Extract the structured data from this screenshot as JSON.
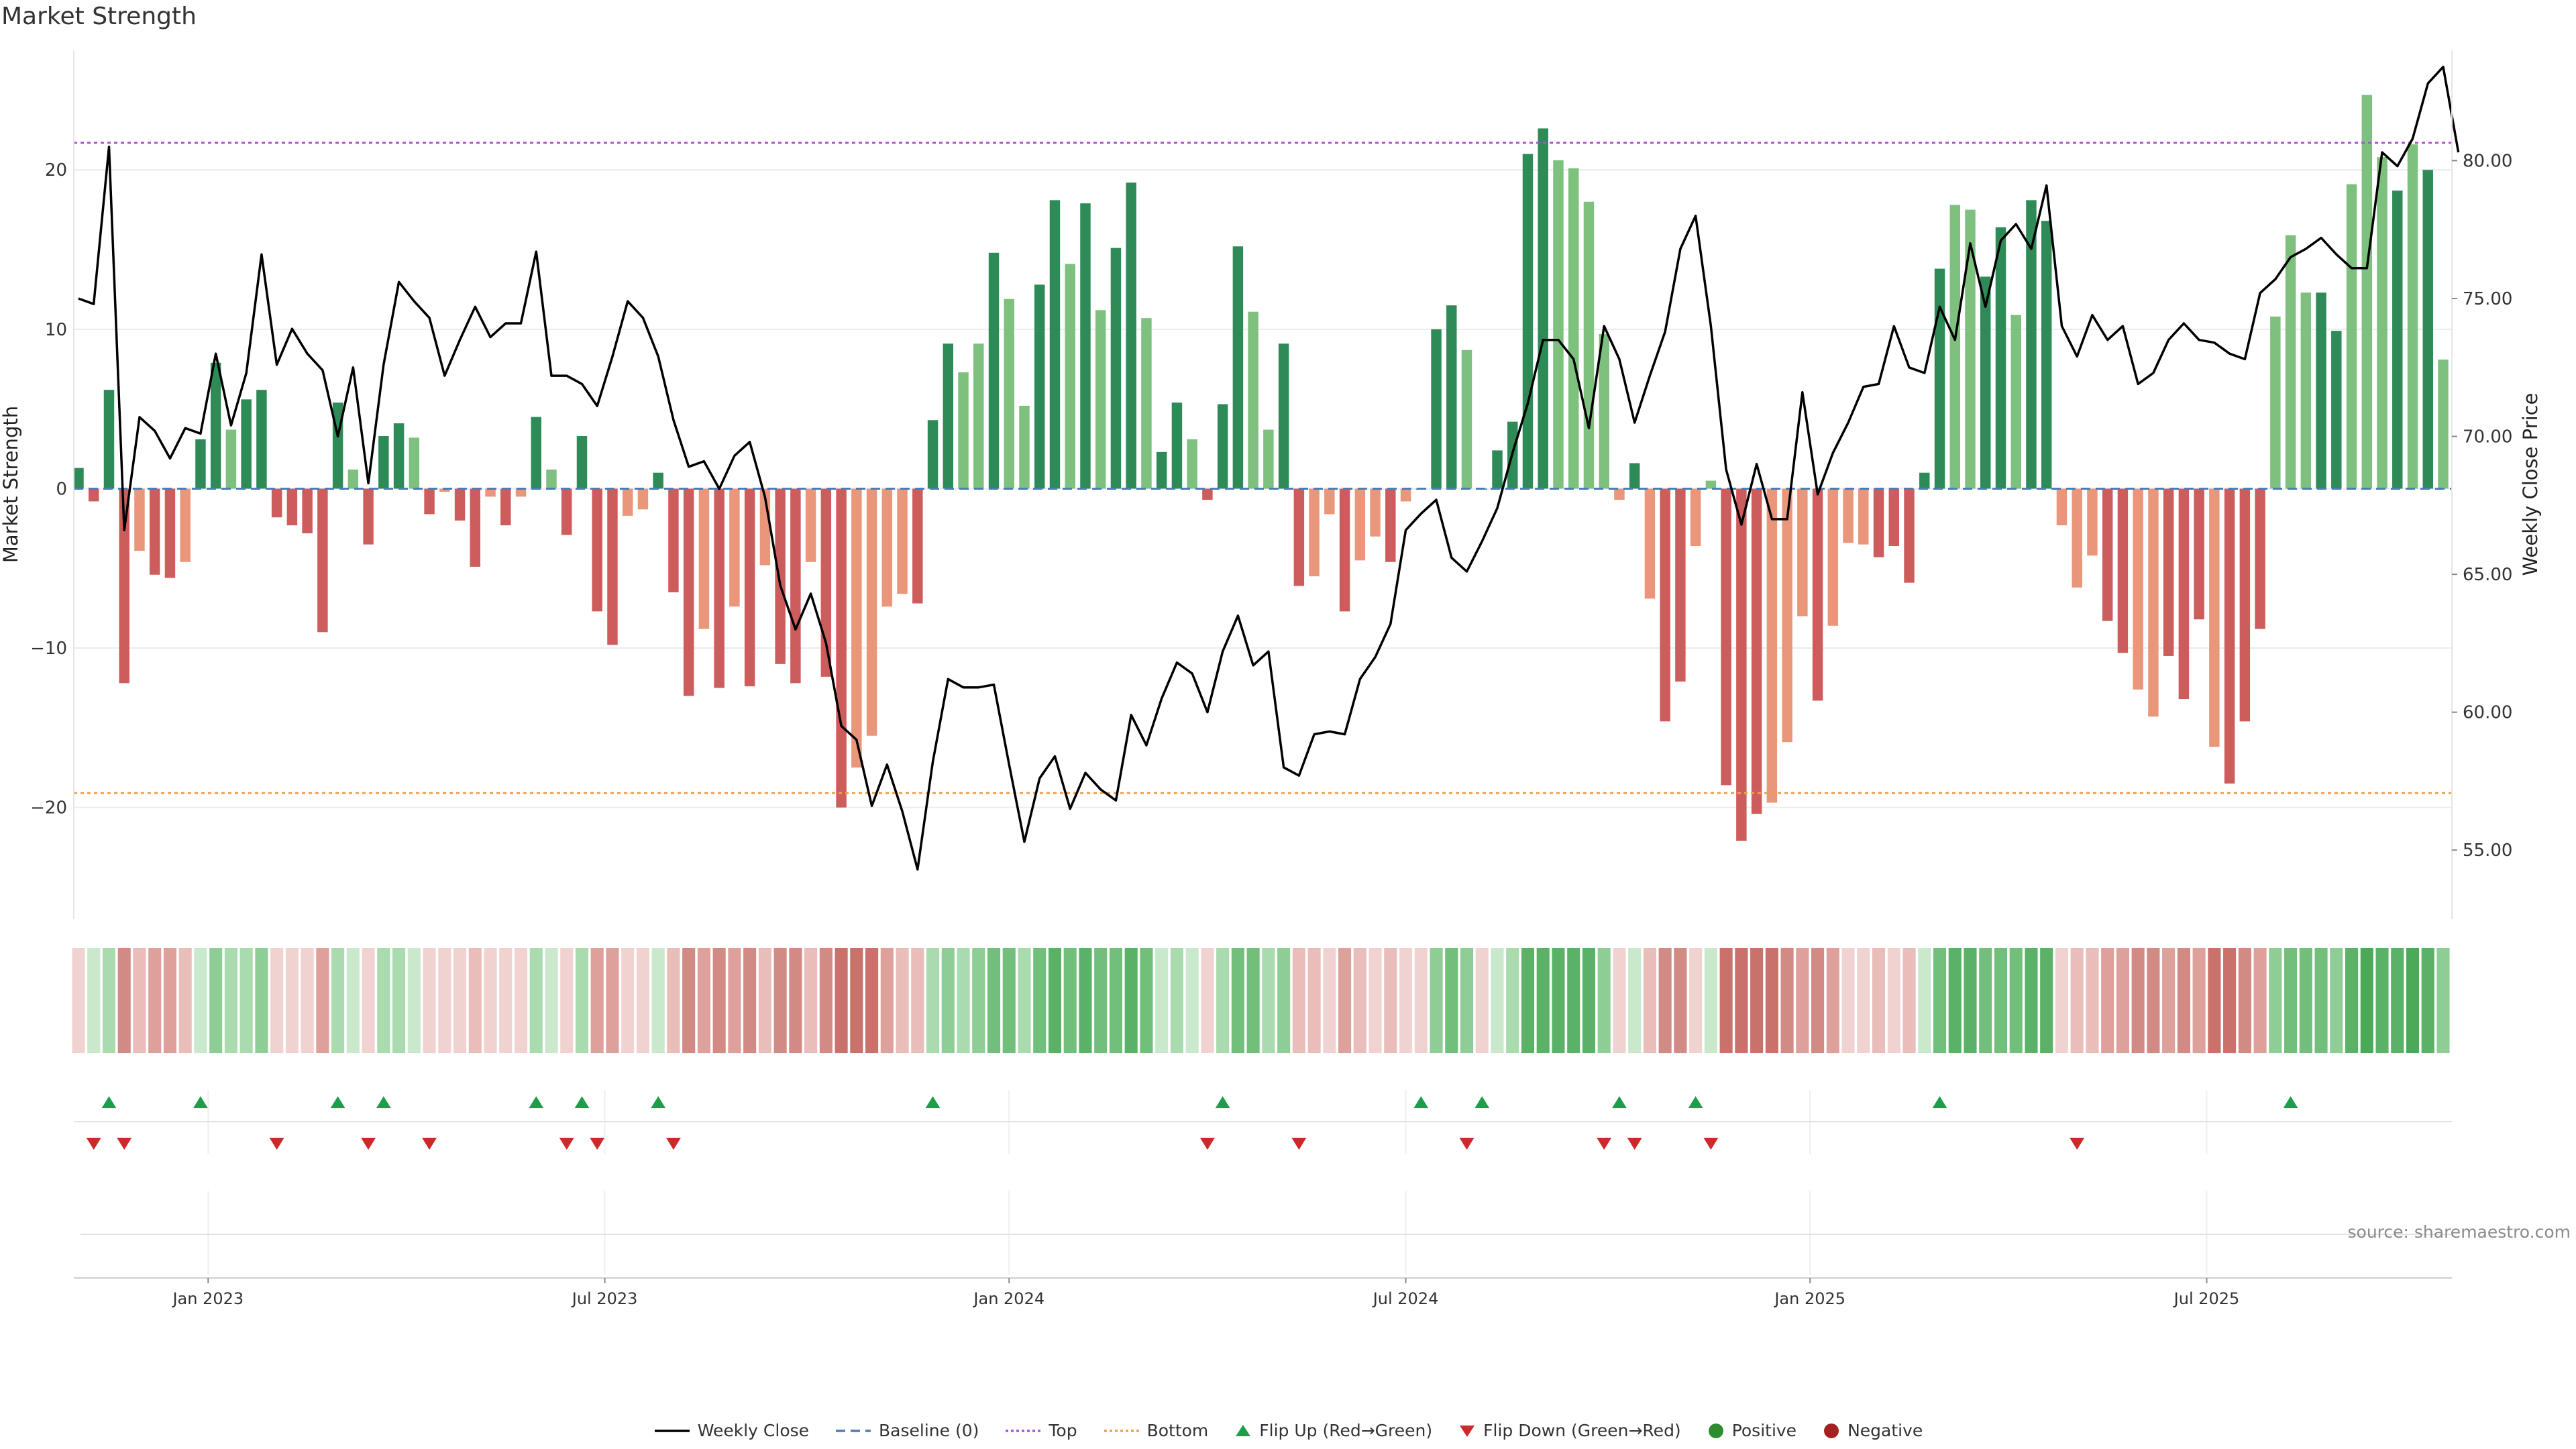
{
  "title": "Market Strength",
  "source": "source: sharemaestro.com",
  "colors": {
    "dark_green": "#2e8b57",
    "light_green": "#7ec07e",
    "dark_red": "#cd5c5c",
    "light_red": "#e9967a",
    "price": "#000000",
    "baseline": "#4a7fb5",
    "top": "#b04fd8",
    "bottom": "#f0a050",
    "flip_up": "#1e9e4a",
    "flip_down": "#cc2a2a"
  },
  "legend": [
    {
      "label": "Weekly Close",
      "kind": "line-solid",
      "color": "#000000"
    },
    {
      "label": "Baseline (0)",
      "kind": "line-dash",
      "color": "#4a7fb5"
    },
    {
      "label": "Top",
      "kind": "line-dot",
      "color": "#b04fd8"
    },
    {
      "label": "Bottom",
      "kind": "line-dot",
      "color": "#f0a050"
    },
    {
      "label": "Flip Up (Red→Green)",
      "kind": "tri-up",
      "color": "#1e9e4a"
    },
    {
      "label": "Flip Down (Green→Red)",
      "kind": "tri-down",
      "color": "#cc2a2a"
    },
    {
      "label": "Positive",
      "kind": "dot",
      "color": "#2e8b2e"
    },
    {
      "label": "Negative",
      "kind": "dot",
      "color": "#a52020"
    }
  ],
  "chart_data": {
    "type": "bar+line",
    "title": "Market Strength",
    "ylabel_left": "Market Strength",
    "ylabel_right": "Weekly Close Price",
    "ylim_left": [
      -27,
      27.5
    ],
    "ylim_right": [
      52.5,
      84
    ],
    "yticks_left": [
      "20",
      "10",
      "0",
      "−10",
      "−20"
    ],
    "ytick_values_left": [
      20,
      10,
      0,
      -10,
      -20
    ],
    "yticks_right": [
      "80.00",
      "75.00",
      "70.00",
      "65.00",
      "60.00",
      "55.00"
    ],
    "ytick_values_right": [
      80,
      75,
      70,
      65,
      60,
      55
    ],
    "x_ticks": [
      "Jan 2023",
      "Jul 2023",
      "Jan 2024",
      "Jul 2024",
      "Jan 2025",
      "Jul 2025"
    ],
    "x_tick_week_index": [
      8.5,
      34.5,
      61,
      87,
      113.5,
      139.5
    ],
    "top_level": 21.7,
    "bottom_level": -19.1,
    "strength": [
      1.3,
      -0.8,
      6.2,
      -12.2,
      -3.9,
      -5.4,
      -5.6,
      -4.6,
      3.1,
      7.9,
      3.7,
      5.6,
      6.2,
      -1.8,
      -2.3,
      -2.8,
      -9,
      5.4,
      1.2,
      -3.5,
      3.3,
      4.1,
      3.2,
      -1.6,
      -0.2,
      -2,
      -4.9,
      -0.5,
      -2.3,
      -0.5,
      4.5,
      1.2,
      -2.9,
      3.3,
      -7.7,
      -9.8,
      -1.7,
      -1.3,
      1,
      -6.5,
      -13,
      -8.8,
      -12.5,
      -7.4,
      -12.4,
      -4.8,
      -11,
      -12.2,
      -4.6,
      -11.8,
      -20,
      -17.5,
      -15.5,
      -7.4,
      -6.6,
      -7.2,
      4.3,
      9.1,
      7.3,
      9.1,
      14.8,
      11.9,
      5.2,
      12.8,
      18.1,
      14.1,
      17.9,
      11.2,
      15.1,
      19.2,
      10.7,
      2.3,
      5.4,
      3.1,
      -0.7,
      5.3,
      15.2,
      11.1,
      3.7,
      9.1,
      -6.1,
      -5.5,
      -1.6,
      -7.7,
      -4.5,
      -3,
      -4.6,
      -0.8,
      0,
      10,
      11.5,
      8.7,
      0,
      2.4,
      4.2,
      21,
      22.6,
      20.6,
      20.1,
      18,
      9.7,
      -0.7,
      1.6,
      -6.9,
      -14.6,
      -12.1,
      -3.6,
      0.5,
      -18.6,
      -22.1,
      -20.4,
      -19.7,
      -15.9,
      -8,
      -13.3,
      -8.6,
      -3.4,
      -3.5,
      -4.3,
      -3.6,
      -5.9,
      1,
      13.8,
      17.8,
      17.5,
      13.3,
      16.4,
      10.9,
      18.1,
      16.8,
      -2.3,
      -6.2,
      -4.2,
      -8.3,
      -10.3,
      -12.6,
      -14.3,
      -10.5,
      -13.2,
      -8.2,
      -16.2,
      -18.5,
      -14.6,
      -8.8,
      10.8,
      15.9,
      12.3,
      12.3,
      9.9,
      19.1,
      24.7,
      20.8,
      18.7,
      21.6,
      20,
      8.1
    ],
    "bar_shade": [
      "d",
      "d",
      "d",
      "d",
      "l",
      "d",
      "d",
      "l",
      "d",
      "d",
      "l",
      "d",
      "d",
      "d",
      "d",
      "d",
      "d",
      "d",
      "l",
      "d",
      "d",
      "d",
      "l",
      "d",
      "l",
      "d",
      "d",
      "l",
      "d",
      "l",
      "d",
      "l",
      "d",
      "d",
      "d",
      "d",
      "l",
      "l",
      "d",
      "d",
      "d",
      "l",
      "d",
      "l",
      "d",
      "l",
      "d",
      "d",
      "l",
      "d",
      "d",
      "l",
      "l",
      "l",
      "l",
      "d",
      "d",
      "d",
      "l",
      "l",
      "d",
      "l",
      "l",
      "d",
      "d",
      "l",
      "d",
      "l",
      "d",
      "d",
      "l",
      "d",
      "d",
      "l",
      "d",
      "d",
      "d",
      "l",
      "l",
      "d",
      "d",
      "l",
      "l",
      "d",
      "l",
      "l",
      "d",
      "l",
      "d",
      "d",
      "d",
      "l",
      "d",
      "d",
      "d",
      "d",
      "d",
      "l",
      "l",
      "l",
      "l",
      "l",
      "d",
      "l",
      "d",
      "d",
      "l",
      "l",
      "d",
      "d",
      "d",
      "l",
      "l",
      "l",
      "d",
      "l",
      "l",
      "l",
      "d",
      "d",
      "d",
      "d",
      "d",
      "l",
      "l",
      "d",
      "d",
      "l",
      "d",
      "d",
      "l",
      "l",
      "l",
      "d",
      "d",
      "l",
      "l",
      "d",
      "d",
      "d",
      "l",
      "d",
      "d",
      "d",
      "l",
      "l",
      "l",
      "d",
      "d",
      "l",
      "l",
      "l",
      "d",
      "l",
      "d",
      "l",
      "d",
      "l"
    ],
    "weekly_close": [
      75,
      74.8,
      80.5,
      66.6,
      70.7,
      70.2,
      69.2,
      70.3,
      70.1,
      73,
      70.4,
      72.3,
      76.6,
      72.6,
      73.9,
      73,
      72.4,
      70,
      72.5,
      68.3,
      72.6,
      75.6,
      74.9,
      74.3,
      72.2,
      73.5,
      74.7,
      73.6,
      74.1,
      74.1,
      76.7,
      72.2,
      72.2,
      71.9,
      71.1,
      72.9,
      74.9,
      74.3,
      72.9,
      70.6,
      68.9,
      69.1,
      68.1,
      69.3,
      69.8,
      67.8,
      64.6,
      63,
      64.3,
      62.5,
      59.5,
      59,
      56.6,
      58.1,
      56.4,
      54.3,
      58.2,
      61.2,
      60.9,
      60.9,
      61,
      58.1,
      55.3,
      57.6,
      58.4,
      56.5,
      57.8,
      57.2,
      56.8,
      59.9,
      58.8,
      60.5,
      61.8,
      61.4,
      60,
      62.2,
      63.5,
      61.7,
      62.2,
      58,
      57.7,
      59.2,
      59.3,
      59.2,
      61.2,
      62,
      63.2,
      66.6,
      67.2,
      67.7,
      65.6,
      65.1,
      66.2,
      67.4,
      69.4,
      71.2,
      73.5,
      73.5,
      72.8,
      70.3,
      74,
      72.8,
      70.5,
      72.2,
      73.8,
      76.8,
      78,
      74,
      68.8,
      66.8,
      69,
      67,
      67,
      71.6,
      67.9,
      69.4,
      70.5,
      71.8,
      71.9,
      74,
      72.5,
      72.3,
      74.7,
      73.5,
      77,
      74.7,
      77.1,
      77.7,
      76.8,
      79.1,
      74,
      72.9,
      74.4,
      73.5,
      74,
      71.9,
      72.3,
      73.5,
      74.1,
      73.5,
      73.4,
      73,
      72.8,
      75.2,
      75.7,
      76.5,
      76.8,
      77.2,
      76.6,
      76.1,
      76.1,
      80.3,
      79.8,
      80.8,
      82.8,
      83.4,
      80.3
    ],
    "flip_up_weeks": [
      2,
      8,
      17,
      20,
      30,
      33,
      38,
      56,
      75,
      88,
      92,
      101,
      106,
      122,
      145
    ],
    "flip_down_weeks": [
      1,
      3,
      13,
      19,
      23,
      32,
      34,
      39,
      74,
      80,
      91,
      100,
      102,
      107,
      131
    ],
    "strip_levels": [
      -1,
      1,
      2,
      -4,
      -2,
      -3,
      -3,
      -2,
      1,
      3,
      2,
      2,
      3,
      -1,
      -1,
      -1,
      -3,
      2,
      1,
      -1,
      2,
      2,
      1,
      -1,
      -1,
      -1,
      -2,
      -1,
      -1,
      -1,
      2,
      1,
      -1,
      2,
      -3,
      -3,
      -1,
      -1,
      1,
      -2,
      -4,
      -3,
      -4,
      -3,
      -4,
      -2,
      -4,
      -4,
      -2,
      -4,
      -5,
      -5,
      -5,
      -3,
      -2,
      -2,
      2,
      3,
      2,
      3,
      4,
      4,
      2,
      4,
      5,
      4,
      5,
      4,
      4,
      5,
      4,
      1,
      2,
      1,
      -1,
      2,
      4,
      4,
      2,
      3,
      -2,
      -2,
      -1,
      -3,
      -2,
      -1,
      -2,
      -1,
      -1,
      3,
      4,
      3,
      -1,
      1,
      2,
      5,
      5,
      5,
      5,
      5,
      3,
      -1,
      1,
      -2,
      -4,
      -4,
      -1,
      1,
      -5,
      -5,
      -5,
      -5,
      -4,
      -3,
      -4,
      -3,
      -1,
      -1,
      -2,
      -1,
      -2,
      1,
      4,
      5,
      5,
      4,
      4,
      4,
      5,
      5,
      -1,
      -2,
      -2,
      -3,
      -3,
      -4,
      -4,
      -3,
      -4,
      -3,
      -5,
      -5,
      -4,
      -3,
      3,
      4,
      4,
      4,
      3,
      5,
      6,
      5,
      5,
      6,
      5,
      3
    ]
  }
}
